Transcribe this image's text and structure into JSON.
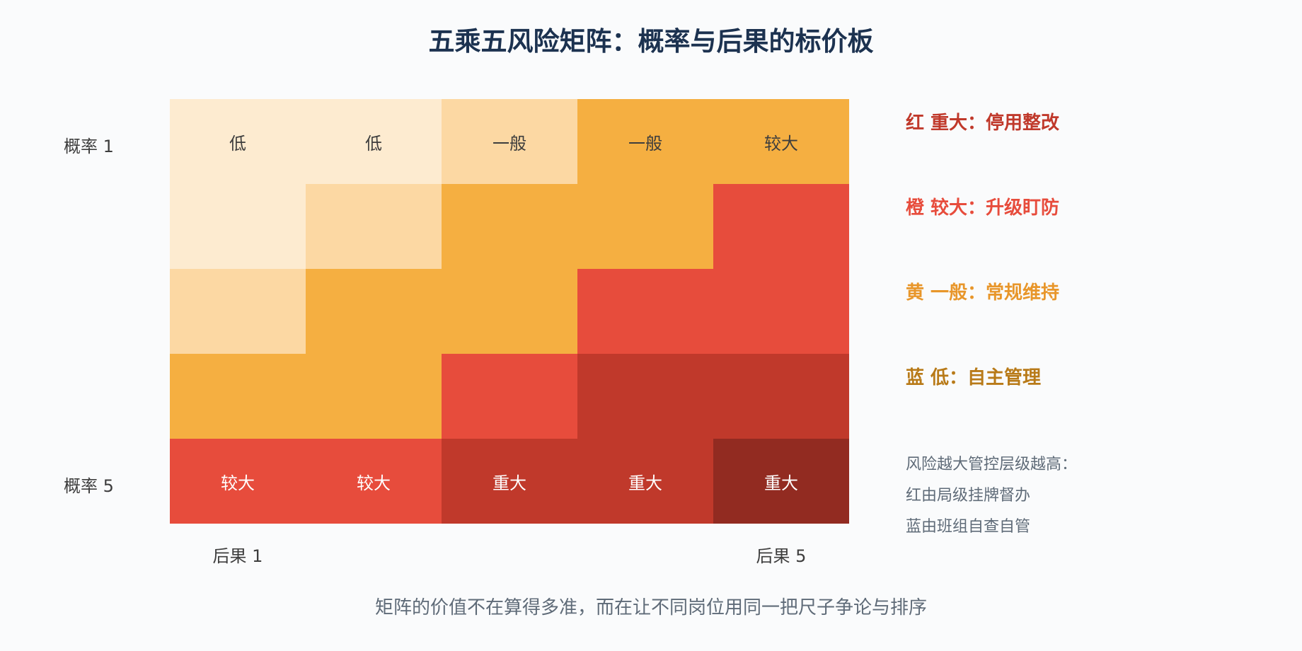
{
  "title": "五乘五风险矩阵：概率与后果的标价板",
  "axes": {
    "row_labels": [
      "概率 1",
      "",
      "",
      "",
      "概率 5"
    ],
    "col_labels": [
      "后果 1",
      "",
      "",
      "",
      "后果 5"
    ]
  },
  "colors": {
    "low": "#fdebd0",
    "mid": "#fcd8a3",
    "amber": "#f5af41",
    "red": "#e74c3c",
    "darkred": "#c0392b",
    "darkest": "#922b21",
    "dark_text": "#3d3d3d",
    "light_text": "#ffffff"
  },
  "matrix": {
    "levels": [
      [
        "low",
        "low",
        "mid",
        "amber",
        "amber"
      ],
      [
        "low",
        "mid",
        "amber",
        "amber",
        "red"
      ],
      [
        "mid",
        "amber",
        "amber",
        "red",
        "red"
      ],
      [
        "amber",
        "amber",
        "red",
        "darkred",
        "darkred"
      ],
      [
        "red",
        "red",
        "darkred",
        "darkred",
        "darkest"
      ]
    ],
    "labels": [
      [
        "低",
        "低",
        "一般",
        "一般",
        "较大"
      ],
      [
        "",
        "",
        "",
        "",
        ""
      ],
      [
        "",
        "",
        "",
        "",
        ""
      ],
      [
        "",
        "",
        "",
        "",
        ""
      ],
      [
        "较大",
        "较大",
        "重大",
        "重大",
        "重大"
      ]
    ]
  },
  "legend": [
    {
      "text": "红 重大：停用整改",
      "color": "#c0392b"
    },
    {
      "text": "橙 较大：升级盯防",
      "color": "#e74c3c"
    },
    {
      "text": "黄 一般：常规维持",
      "color": "#e8962a"
    },
    {
      "text": "蓝 低：自主管理",
      "color": "#b87a18"
    }
  ],
  "note": [
    "风险越大管控层级越高：",
    "红由局级挂牌督办",
    "蓝由班组自查自管"
  ],
  "footer": "矩阵的价值不在算得多准，而在让不同岗位用同一把尺子争论与排序"
}
